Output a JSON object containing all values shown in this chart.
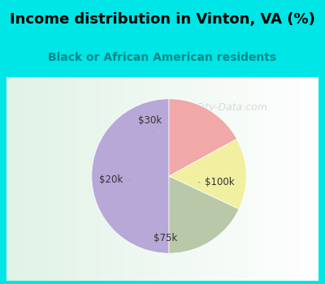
{
  "title": "Income distribution in Vinton, VA (%)",
  "subtitle": "Black or African American residents",
  "slices": [
    {
      "label": "$100k",
      "value": 50,
      "color": "#b8a8d8",
      "label_pos": "right"
    },
    {
      "label": "$75k",
      "value": 18,
      "color": "#b8c8a8",
      "label_pos": "bottom"
    },
    {
      "label": "$20k",
      "value": 15,
      "color": "#f0f0a0",
      "label_pos": "left"
    },
    {
      "label": "$30k",
      "value": 17,
      "color": "#f0a8a8",
      "label_pos": "top"
    }
  ],
  "bg_top_color": "#00e5e5",
  "bg_chart_color_grad": "#e8f8f0",
  "title_color": "#000000",
  "subtitle_color": "#008888",
  "watermark": "City-Data.com",
  "startangle": 90,
  "fig_width": 4.0,
  "fig_height": 3.5
}
